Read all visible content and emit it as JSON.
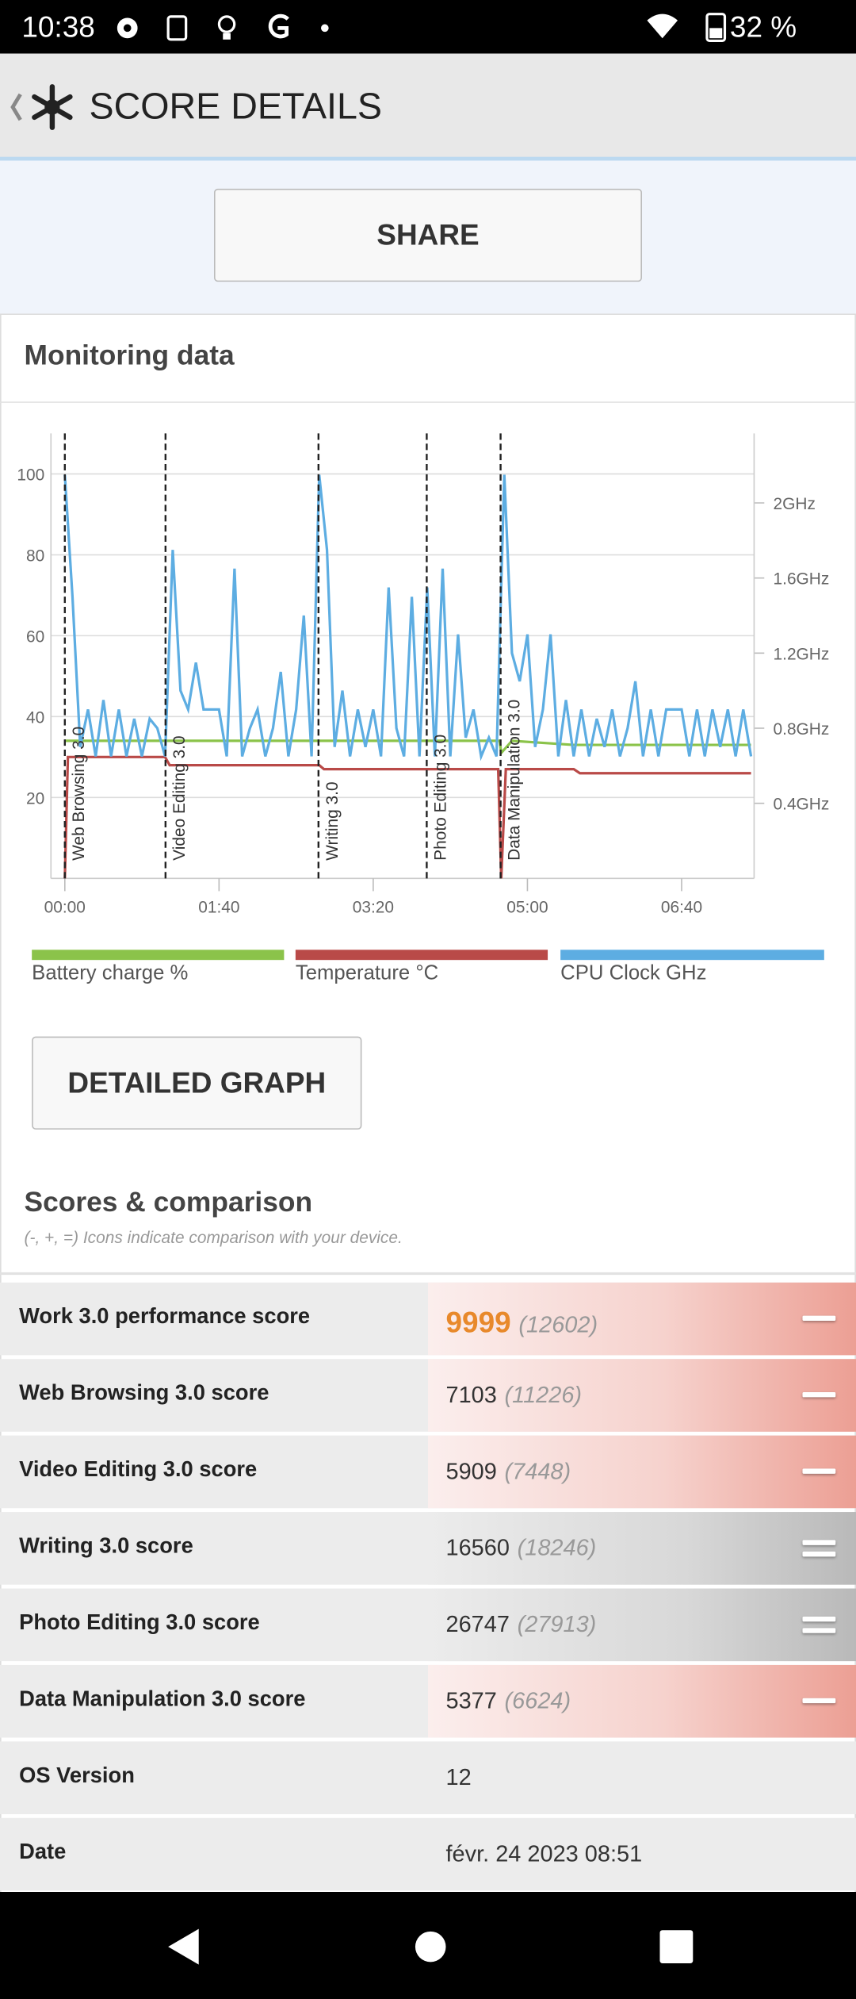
{
  "status_bar": {
    "time": "10:38",
    "battery": "32 %"
  },
  "header": {
    "title": "SCORE DETAILS"
  },
  "share_button": "SHARE",
  "monitoring": {
    "title": "Monitoring data"
  },
  "chart_data": {
    "type": "line",
    "xlim": [
      -9,
      447
    ],
    "xticks": [
      {
        "value": 0,
        "label": "00:00"
      },
      {
        "value": 100,
        "label": "01:40"
      },
      {
        "value": 200,
        "label": "03:20"
      },
      {
        "value": 300,
        "label": "05:00"
      },
      {
        "value": 400,
        "label": "06:40"
      }
    ],
    "ylim": [
      0,
      110
    ],
    "yticks": [
      20,
      40,
      60,
      80,
      100
    ],
    "y2lim": [
      0,
      2.37
    ],
    "y2ticks": [
      {
        "value": 0.4,
        "label": "0.4GHz"
      },
      {
        "value": 0.8,
        "label": "0.8GHz"
      },
      {
        "value": 1.2,
        "label": "1.2GHz"
      },
      {
        "value": 1.6,
        "label": "1.6GHz"
      },
      {
        "value": 2,
        "label": "2GHz"
      }
    ],
    "grid": true,
    "annotations": [
      {
        "x": 0,
        "label": "Web Browsing 3.0"
      },
      {
        "x": 65.3,
        "label": "Video Editing 3.0"
      },
      {
        "x": 164.5,
        "label": "Writing 3.0"
      },
      {
        "x": 234.7,
        "label": "Photo Editing 3.0"
      },
      {
        "x": 282.6,
        "label": "Data Manipulation 3.0"
      }
    ],
    "series": [
      {
        "name": "Battery charge %",
        "color": "#8bc34a",
        "axis": "y",
        "x": [
          0,
          282,
          283,
          290,
          330,
          445
        ],
        "values": [
          34,
          34,
          31,
          34,
          33,
          33
        ]
      },
      {
        "name": "Temperature °C",
        "color": "#b94a48",
        "axis": "y",
        "x": [
          0,
          2,
          65,
          68,
          165,
          168,
          281,
          283,
          286,
          330,
          334,
          445
        ],
        "values": [
          0,
          30,
          30,
          28,
          28,
          27,
          27,
          0,
          27,
          27,
          26,
          26
        ]
      },
      {
        "name": "CPU Clock GHz",
        "color": "#5dade2",
        "axis": "y2",
        "x": [
          0,
          5,
          10,
          15,
          20,
          25,
          30,
          35,
          40,
          45,
          50,
          55,
          60,
          65,
          70,
          75,
          80,
          85,
          90,
          95,
          100,
          105,
          110,
          115,
          120,
          125,
          130,
          135,
          140,
          145,
          150,
          155,
          160,
          165,
          170,
          175,
          180,
          185,
          190,
          195,
          200,
          205,
          210,
          215,
          220,
          225,
          230,
          235,
          240,
          245,
          250,
          255,
          260,
          265,
          270,
          275,
          280,
          285,
          290,
          295,
          300,
          305,
          310,
          315,
          320,
          325,
          330,
          335,
          340,
          345,
          350,
          355,
          360,
          365,
          370,
          375,
          380,
          385,
          390,
          395,
          400,
          405,
          410,
          415,
          420,
          425,
          430,
          435,
          440,
          445
        ],
        "values": [
          2.15,
          1.5,
          0.7,
          0.9,
          0.65,
          0.95,
          0.65,
          0.9,
          0.65,
          0.85,
          0.65,
          0.85,
          0.8,
          0.65,
          1.75,
          1.0,
          0.9,
          1.15,
          0.9,
          0.9,
          0.9,
          0.65,
          1.65,
          0.65,
          0.8,
          0.9,
          0.65,
          0.8,
          1.1,
          0.65,
          0.9,
          1.4,
          0.65,
          2.15,
          1.75,
          0.7,
          1.0,
          0.65,
          0.9,
          0.7,
          0.9,
          0.65,
          1.55,
          0.8,
          0.65,
          1.5,
          0.65,
          1.55,
          0.65,
          1.65,
          0.65,
          1.3,
          0.75,
          0.9,
          0.65,
          0.75,
          0.65,
          2.15,
          1.2,
          1.05,
          1.3,
          0.7,
          0.9,
          1.3,
          0.65,
          0.95,
          0.65,
          0.9,
          0.65,
          0.85,
          0.7,
          0.9,
          0.65,
          0.8,
          1.05,
          0.65,
          0.9,
          0.65,
          0.9,
          0.9,
          0.9,
          0.65,
          0.9,
          0.65,
          0.9,
          0.7,
          0.9,
          0.65,
          0.9,
          0.65
        ]
      }
    ]
  },
  "detailed_graph_button": "DETAILED GRAPH",
  "scores": {
    "title": "Scores & comparison",
    "note": "(-, +, =) Icons indicate comparison with your device.",
    "rows": [
      {
        "label": "Work 3.0 performance score",
        "score": 9999,
        "comparison": "(12602)",
        "icon": "minus",
        "score_color": "#e8892b"
      },
      {
        "label": "Web Browsing 3.0 score",
        "score": 7103,
        "comparison": "(11226)",
        "icon": "minus"
      },
      {
        "label": "Video Editing 3.0 score",
        "score": 5909,
        "comparison": "(7448)",
        "icon": "minus"
      },
      {
        "label": "Writing 3.0 score",
        "score": 16560,
        "comparison": "(18246)",
        "icon": "equal"
      },
      {
        "label": "Photo Editing 3.0 score",
        "score": 26747,
        "comparison": "(27913)",
        "icon": "equal"
      },
      {
        "label": "Data Manipulation 3.0 score",
        "score": 5377,
        "comparison": "(6624)",
        "icon": "minus"
      }
    ]
  },
  "info_rows": [
    {
      "label": "OS Version",
      "value": "12"
    },
    {
      "label": "Date",
      "value": "févr. 24 2023 08:51"
    }
  ]
}
